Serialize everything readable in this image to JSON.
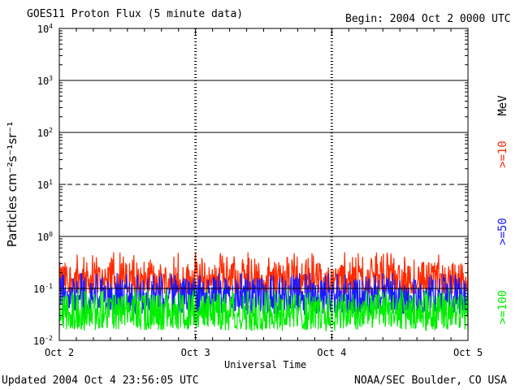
{
  "header": {
    "title": "GOES11 Proton Flux (5 minute data)",
    "begin": "Begin: 2004 Oct 2 0000 UTC"
  },
  "footer": {
    "updated": "Updated 2004 Oct  4 23:56:05 UTC",
    "credit": "NOAA/SEC Boulder, CO USA"
  },
  "chart_data": {
    "type": "line",
    "title": "GOES11 Proton Flux (5 minute data)",
    "xlabel": "Universal Time",
    "ylabel": "Particles cm⁻²s⁻¹sr⁻¹",
    "yscale": "log",
    "ylim": [
      0.01,
      10000
    ],
    "yticks": [
      {
        "base": "10",
        "exp": "-2"
      },
      {
        "base": "10",
        "exp": "-1"
      },
      {
        "base": "10",
        "exp": "0"
      },
      {
        "base": "10",
        "exp": "1"
      },
      {
        "base": "10",
        "exp": "2"
      },
      {
        "base": "10",
        "exp": "3"
      },
      {
        "base": "10",
        "exp": "4"
      }
    ],
    "xlim": [
      "2004-10-02",
      "2004-10-05"
    ],
    "xticks": [
      "Oct 2",
      "Oct 3",
      "Oct 4",
      "Oct 5"
    ],
    "energy_unit": "MeV",
    "reference_lines": [
      {
        "value": 1,
        "style": "solid"
      },
      {
        "value": 10,
        "style": "dashed"
      },
      {
        "value": 100,
        "style": "solid"
      },
      {
        "value": 1000,
        "style": "solid"
      },
      {
        "value": 0.1,
        "style": "solid"
      }
    ],
    "series": [
      {
        "name": ">=10",
        "color": "#ff2a00",
        "typical": 0.15,
        "range": [
          0.08,
          0.5
        ]
      },
      {
        "name": ">=50",
        "color": "#1a1aff",
        "typical": 0.07,
        "range": [
          0.03,
          0.2
        ]
      },
      {
        "name": ">=100",
        "color": "#00ee00",
        "typical": 0.035,
        "range": [
          0.015,
          0.1
        ]
      }
    ]
  }
}
